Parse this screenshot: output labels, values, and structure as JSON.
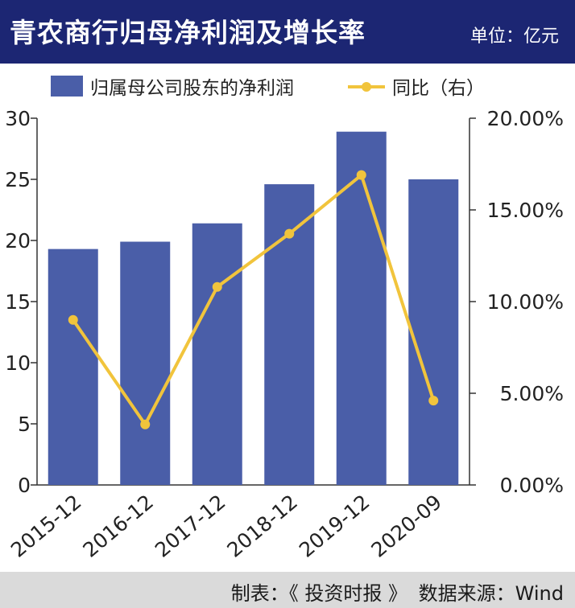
{
  "header": {
    "title": "青农商行归母净利润及增长率",
    "unit": "单位：亿元"
  },
  "footer": {
    "maker": "制表：《 投资时报 》",
    "source": "数据来源：Wind"
  },
  "colors": {
    "header_bg": "#1c2673",
    "bar": "#4a5ea8",
    "line": "#f1c43c",
    "footer_bg": "#dadada"
  },
  "chart_data": {
    "type": "bar",
    "categories": [
      "2015-12",
      "2016-12",
      "2017-12",
      "2018-12",
      "2019-12",
      "2020-09"
    ],
    "y_ticks": [
      "0",
      "5",
      "10",
      "15",
      "20",
      "25",
      "30"
    ],
    "y2_ticks": [
      "0.00%",
      "5.00%",
      "10.00%",
      "15.00%",
      "20.00%"
    ],
    "ylim": [
      0,
      30
    ],
    "y2lim": [
      0,
      20
    ],
    "grid": false,
    "legend": "top",
    "series": [
      {
        "name": "归属母公司股东的净利润",
        "type": "bar",
        "axis": "left",
        "values": [
          19.3,
          19.9,
          21.4,
          24.6,
          28.9,
          25.0
        ]
      },
      {
        "name": "同比（右）",
        "type": "line",
        "axis": "right",
        "values": [
          9.0,
          3.3,
          10.8,
          13.7,
          16.9,
          4.6
        ]
      }
    ]
  }
}
